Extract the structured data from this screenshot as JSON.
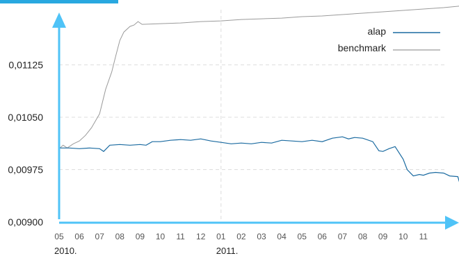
{
  "colors": {
    "axis": "#4fc3f7",
    "grid": "#dddddd",
    "alap": "#1a6aa0",
    "benchmark": "#9a9a9a",
    "header": "#29a8e0"
  },
  "chart_data": {
    "type": "line",
    "title": "",
    "xlabel": "",
    "ylabel": "",
    "ylim": [
      0.009,
      0.012
    ],
    "y_ticks": [
      "0,00900",
      "0,00975",
      "0,01050",
      "0,01125"
    ],
    "y_tick_values": [
      0.009,
      0.00975,
      0.0105,
      0.01125
    ],
    "x_ticks": [
      "05",
      "06",
      "07",
      "08",
      "09",
      "10",
      "11",
      "12",
      "01",
      "02",
      "03",
      "04",
      "05",
      "06",
      "07",
      "08",
      "09",
      "10",
      "11"
    ],
    "x_year_labels": [
      {
        "label": "2010.",
        "month_index": 0
      },
      {
        "label": "2011.",
        "month_index": 8
      }
    ],
    "grid": true,
    "legend_position": "top-right",
    "series": [
      {
        "name": "alap",
        "x": [
          0,
          0.5,
          1,
          1.5,
          2,
          2.2,
          2.5,
          3,
          3.5,
          4,
          4.3,
          4.6,
          5,
          5.5,
          6,
          6.5,
          7,
          7.5,
          8,
          8.5,
          9,
          9.5,
          10,
          10.5,
          11,
          11.5,
          12,
          12.5,
          13,
          13.5,
          14,
          14.3,
          14.6,
          15,
          15.5,
          15.8,
          16,
          16.3,
          16.6,
          17,
          17.2,
          17.5,
          17.8,
          18,
          18.3,
          18.6,
          19,
          19.3,
          19.7,
          19.9,
          20,
          20.1
        ],
        "y": [
          0.01006,
          0.01006,
          0.01005,
          0.01006,
          0.01005,
          0.01001,
          0.0101,
          0.01011,
          0.0101,
          0.01011,
          0.0101,
          0.01015,
          0.01015,
          0.01017,
          0.01018,
          0.01017,
          0.01019,
          0.01016,
          0.01014,
          0.01012,
          0.01013,
          0.01012,
          0.01014,
          0.01013,
          0.01017,
          0.01016,
          0.01015,
          0.01017,
          0.01015,
          0.0102,
          0.01022,
          0.01019,
          0.01021,
          0.0102,
          0.01015,
          0.01002,
          0.01001,
          0.01005,
          0.01008,
          0.0099,
          0.00975,
          0.00966,
          0.00968,
          0.00967,
          0.0097,
          0.00971,
          0.0097,
          0.00966,
          0.00965,
          0.00945,
          0.0095,
          0.00953
        ]
      },
      {
        "name": "benchmark",
        "x": [
          0,
          0.2,
          0.4,
          0.7,
          1,
          1.3,
          1.6,
          2,
          2.3,
          2.6,
          2.8,
          3,
          3.2,
          3.5,
          3.7,
          3.9,
          4.1,
          5,
          6,
          7,
          8,
          9,
          10,
          11,
          12,
          13,
          14,
          15,
          16,
          17,
          18,
          19,
          20.1
        ],
        "y": [
          0.01005,
          0.0101,
          0.01006,
          0.01012,
          0.01016,
          0.01024,
          0.01035,
          0.01055,
          0.0109,
          0.01115,
          0.01138,
          0.0116,
          0.01172,
          0.0118,
          0.01182,
          0.01187,
          0.01183,
          0.01184,
          0.01185,
          0.01187,
          0.01188,
          0.0119,
          0.01191,
          0.01192,
          0.01194,
          0.01195,
          0.01197,
          0.01199,
          0.01201,
          0.01203,
          0.01205,
          0.01207,
          0.0121
        ]
      }
    ]
  }
}
